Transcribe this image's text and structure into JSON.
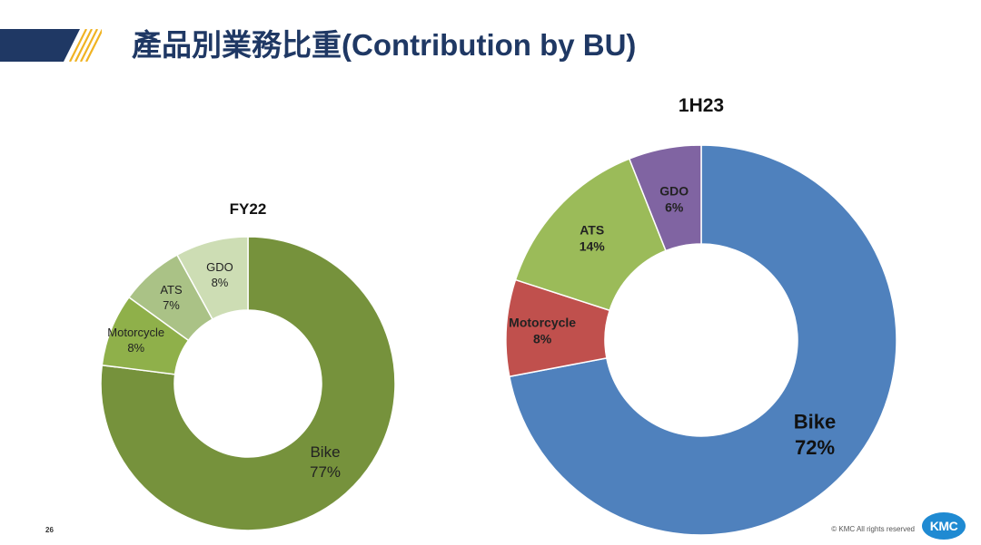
{
  "header": {
    "title": "產品別業務比重(Contribution by BU)"
  },
  "footer": {
    "page_number": "26",
    "copyright": "© KMC All rights reserved",
    "logo_text": "KMC"
  },
  "colors": {
    "title_navy": "#1f3864",
    "accent_gold": "#f0b323",
    "logo_blue": "#1f8ad2"
  },
  "chart_data": [
    {
      "type": "pie",
      "subtype": "donut",
      "title": "FY22",
      "categories": [
        "Bike",
        "Motorcycle",
        "ATS",
        "GDO"
      ],
      "values": [
        77,
        8,
        7,
        8
      ],
      "labels": [
        "77%",
        "8%",
        "7%",
        "8%"
      ],
      "colors": [
        "#76923c",
        "#8fb04a",
        "#aac286",
        "#cdddb4"
      ],
      "legend": "none"
    },
    {
      "type": "pie",
      "subtype": "donut",
      "title": "1H23",
      "categories": [
        "Bike",
        "Motorcycle",
        "ATS",
        "GDO"
      ],
      "values": [
        72,
        8,
        14,
        6
      ],
      "labels": [
        "72%",
        "8%",
        "14%",
        "6%"
      ],
      "colors": [
        "#4f81bd",
        "#c0504d",
        "#9bbb59",
        "#8064a2"
      ],
      "legend": "none"
    }
  ]
}
